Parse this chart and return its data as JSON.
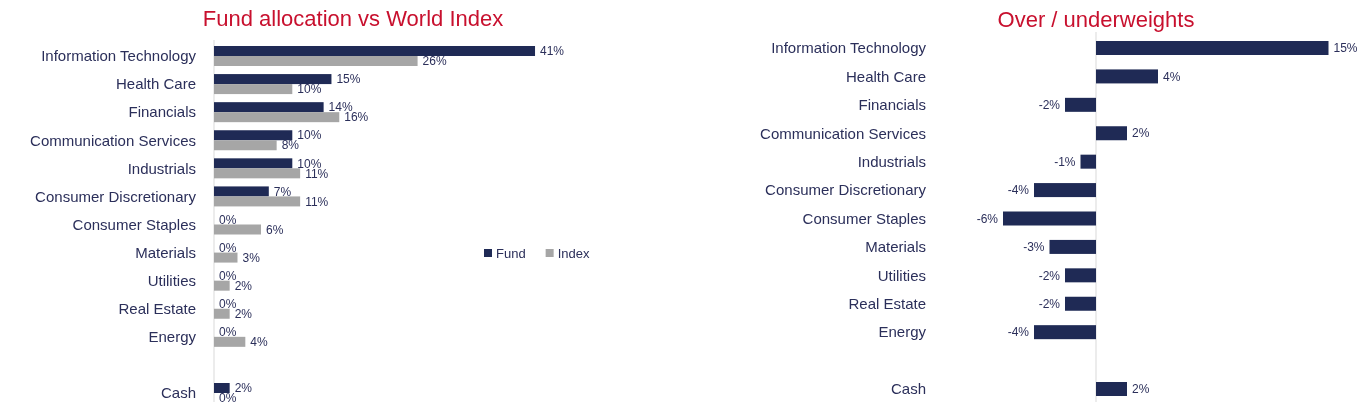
{
  "chart_data": [
    {
      "type": "bar",
      "title": "Fund allocation vs World Index",
      "orientation": "horizontal",
      "tick_labels": "y",
      "legend": "right",
      "categories": [
        "Information Technology",
        "Health Care",
        "Financials",
        "Communication Services",
        "Industrials",
        "Consumer Discretionary",
        "Consumer Staples",
        "Materials",
        "Utilities",
        "Real Estate",
        "Energy",
        null,
        "Cash"
      ],
      "series": [
        {
          "name": "Fund",
          "color": "#1f2a55",
          "values": [
            41,
            15,
            14,
            10,
            10,
            7,
            0,
            0,
            0,
            0,
            0,
            null,
            2
          ],
          "value_labels": [
            "41%",
            "15%",
            "14%",
            "10%",
            "10%",
            "7%",
            "0%",
            "0%",
            "0%",
            "0%",
            "0%",
            null,
            "2%"
          ]
        },
        {
          "name": "Index",
          "color": "#a6a6a6",
          "values": [
            26,
            10,
            16,
            8,
            11,
            11,
            6,
            3,
            2,
            2,
            4,
            null,
            0
          ],
          "value_labels": [
            "26%",
            "10%",
            "16%",
            "8%",
            "11%",
            "11%",
            "6%",
            "3%",
            "2%",
            "2%",
            "4%",
            null,
            "0%"
          ]
        }
      ]
    },
    {
      "type": "bar",
      "title": "Over / underweights",
      "orientation": "horizontal",
      "tick_labels": "y",
      "categories": [
        "Information Technology",
        "Health Care",
        "Financials",
        "Communication Services",
        "Industrials",
        "Consumer Discretionary",
        "Consumer Staples",
        "Materials",
        "Utilities",
        "Real Estate",
        "Energy",
        null,
        "Cash"
      ],
      "series": [
        {
          "color": "#1f2a55",
          "values": [
            15,
            4,
            -2,
            2,
            -1,
            -4,
            -6,
            -3,
            -2,
            -2,
            -4,
            null,
            2
          ],
          "value_labels": [
            "15%",
            "4%",
            "-2%",
            "2%",
            "-1%",
            "-4%",
            "-6%",
            "-3%",
            "-2%",
            "-2%",
            "-4%",
            null,
            "2%"
          ]
        }
      ]
    }
  ]
}
